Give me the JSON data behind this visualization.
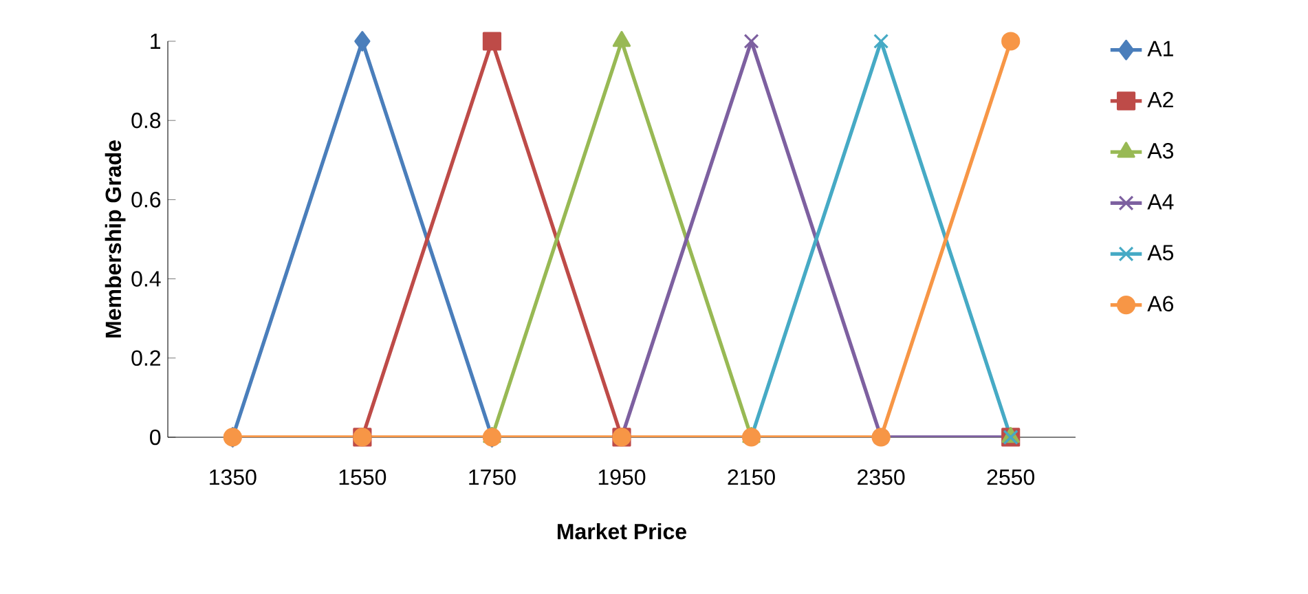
{
  "chart_data": {
    "type": "line",
    "xlabel": "Market Price",
    "ylabel": "Membership Grade",
    "categories": [
      "1350",
      "1550",
      "1750",
      "1950",
      "2150",
      "2350",
      "2550"
    ],
    "ylim": [
      0,
      1
    ],
    "yticks": [
      0,
      0.2,
      0.4,
      0.6,
      0.8,
      1
    ],
    "legend": "right",
    "line_style": "solid",
    "series": [
      {
        "name": "A1",
        "color": "#4a7ebb",
        "marker": "diamond",
        "values": [
          0,
          1,
          0,
          null,
          null,
          null,
          null
        ]
      },
      {
        "name": "A2",
        "color": "#be4b48",
        "marker": "square",
        "values": [
          null,
          0,
          1,
          0,
          null,
          null,
          0
        ]
      },
      {
        "name": "A3",
        "color": "#98b954",
        "marker": "triangle",
        "values": [
          null,
          null,
          0,
          1,
          0,
          null,
          0
        ]
      },
      {
        "name": "A4",
        "color": "#7d60a0",
        "marker": "cross",
        "values": [
          null,
          null,
          null,
          0,
          1,
          0,
          0
        ]
      },
      {
        "name": "A5",
        "color": "#46aac5",
        "marker": "cross",
        "values": [
          null,
          null,
          null,
          null,
          0,
          1,
          0
        ]
      },
      {
        "name": "A6",
        "color": "#f79646",
        "marker": "circle",
        "values": [
          0,
          0,
          0,
          0,
          0,
          0,
          1
        ]
      }
    ]
  }
}
